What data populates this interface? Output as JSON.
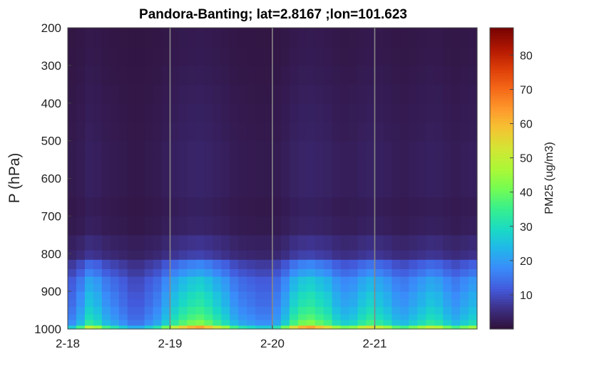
{
  "chart_data": {
    "type": "heatmap",
    "title": "Pandora-Banting; lat=2.8167 ;lon=101.623",
    "xlabel": "",
    "ylabel": "P (hPa)",
    "colorbar_label": "PM25 (ug/m3)",
    "colormap": "turbo",
    "x_ticks": [
      "2-18",
      "2-19",
      "2-20",
      "2-21"
    ],
    "y_ticks": [
      "200",
      "300",
      "400",
      "500",
      "600",
      "700",
      "800",
      "900",
      "1000"
    ],
    "y_range": [
      1000,
      200
    ],
    "x_range_days": [
      "2-18",
      "2-22"
    ],
    "color_range": [
      0,
      88
    ],
    "colorbar_ticks": [
      "10",
      "20",
      "30",
      "40",
      "50",
      "60",
      "70",
      "80"
    ],
    "vertical_gridlines_at": [
      "2-19",
      "2-20",
      "2-21"
    ],
    "time_profile": [
      0.6,
      0.8,
      1.1,
      1.0,
      0.8,
      0.7,
      0.6,
      0.5,
      0.5,
      0.6,
      0.7,
      0.9,
      1.1,
      1.25,
      1.35,
      1.4,
      1.3,
      1.15,
      1.0,
      0.8,
      0.7,
      0.65,
      0.6,
      0.6,
      0.7,
      0.9,
      1.2,
      1.35,
      1.4,
      1.3,
      1.2,
      1.0,
      0.9,
      0.95,
      1.1,
      1.2,
      1.1,
      1.0,
      0.85,
      0.8,
      0.9,
      1.0,
      1.1,
      1.05,
      0.9,
      0.8,
      0.9,
      1.0
    ],
    "levels": [
      {
        "p": 1000,
        "value": 45
      },
      {
        "p": 990,
        "value": 30
      },
      {
        "p": 975,
        "value": 27
      },
      {
        "p": 960,
        "value": 25
      },
      {
        "p": 940,
        "value": 23
      },
      {
        "p": 920,
        "value": 22
      },
      {
        "p": 900,
        "value": 20
      },
      {
        "p": 880,
        "value": 19
      },
      {
        "p": 860,
        "value": 15
      },
      {
        "p": 840,
        "value": 12
      },
      {
        "p": 815,
        "value": 6
      },
      {
        "p": 790,
        "value": 4.5
      },
      {
        "p": 750,
        "value": 2.5
      },
      {
        "p": 700,
        "value": 2.0
      },
      {
        "p": 650,
        "value": 2.5
      },
      {
        "p": 600,
        "value": 2.5
      },
      {
        "p": 550,
        "value": 2.5
      },
      {
        "p": 500,
        "value": 2.2
      },
      {
        "p": 450,
        "value": 2.0
      },
      {
        "p": 400,
        "value": 1.8
      },
      {
        "p": 350,
        "value": 1.5
      },
      {
        "p": 300,
        "value": 1.3
      },
      {
        "p": 250,
        "value": 1.2
      },
      {
        "p": 200,
        "value": 1.2
      }
    ]
  }
}
